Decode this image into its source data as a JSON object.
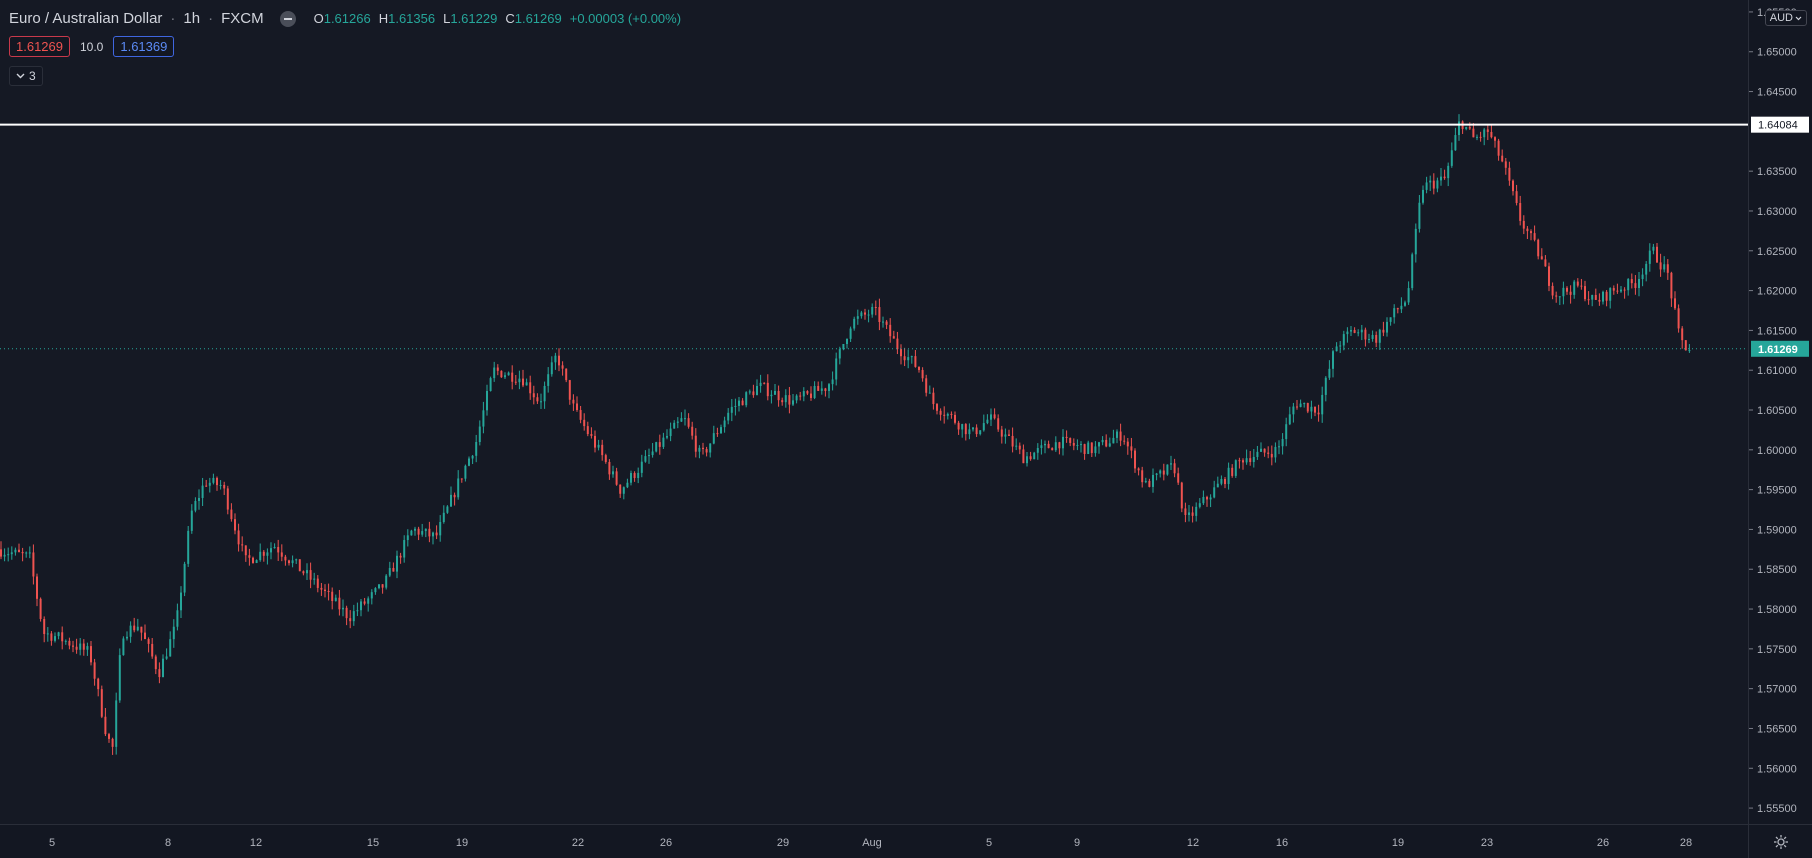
{
  "symbol": {
    "name": "Euro / Australian Dollar",
    "interval": "1h",
    "exchange": "FXCM"
  },
  "ohlc": {
    "o_label": "O",
    "o": "1.61266",
    "h_label": "H",
    "h": "1.61356",
    "l_label": "L",
    "l": "1.61229",
    "c_label": "C",
    "c": "1.61269",
    "change": "+0.00003 (+0.00%)"
  },
  "trade": {
    "sell_price": "1.61269",
    "quantity": "10.0",
    "buy_price": "1.61369"
  },
  "indicators_collapsed_count": "3",
  "currency": "AUD",
  "price_labels": [
    "1.65500",
    "1.65000",
    "1.64500",
    "1.63500",
    "1.63000",
    "1.62500",
    "1.62000",
    "1.61500",
    "1.61000",
    "1.60500",
    "1.60000",
    "1.59500",
    "1.59000",
    "1.58500",
    "1.58000",
    "1.57500",
    "1.57000",
    "1.56500",
    "1.56000",
    "1.55500"
  ],
  "hline": {
    "price": 1.64084,
    "label": "1.64084"
  },
  "last_price": {
    "price": 1.61269,
    "label": "1.61269"
  },
  "time_labels": [
    "5",
    "8",
    "12",
    "15",
    "19",
    "22",
    "26",
    "29",
    "Aug",
    "5",
    "9",
    "12",
    "16",
    "19",
    "23",
    "26",
    "28"
  ],
  "colors": {
    "up": "#26a69a",
    "down": "#ef5350",
    "background": "#151924",
    "hline": "#ffffff",
    "last_price": "#26a69a"
  },
  "chart_data": {
    "type": "candlestick",
    "ylim": [
      1.553,
      1.6565
    ],
    "keypoints": [
      [
        0,
        1.5875
      ],
      [
        28,
        1.5865
      ],
      [
        40,
        1.577
      ],
      [
        52,
        1.5765
      ],
      [
        80,
        1.5745
      ],
      [
        95,
        1.564
      ],
      [
        100,
        1.5625
      ],
      [
        108,
        1.577
      ],
      [
        122,
        1.578
      ],
      [
        140,
        1.572
      ],
      [
        155,
        1.578
      ],
      [
        168,
        1.592
      ],
      [
        180,
        1.596
      ],
      [
        195,
        1.5955
      ],
      [
        215,
        1.586
      ],
      [
        240,
        1.588
      ],
      [
        270,
        1.584
      ],
      [
        305,
        1.579
      ],
      [
        335,
        1.583
      ],
      [
        360,
        1.59
      ],
      [
        380,
        1.589
      ],
      [
        400,
        1.596
      ],
      [
        415,
        1.601
      ],
      [
        430,
        1.61
      ],
      [
        455,
        1.609
      ],
      [
        470,
        1.606
      ],
      [
        485,
        1.612
      ],
      [
        500,
        1.605
      ],
      [
        525,
        1.599
      ],
      [
        540,
        1.595
      ],
      [
        570,
        1.6
      ],
      [
        595,
        1.604
      ],
      [
        610,
        1.599
      ],
      [
        635,
        1.605
      ],
      [
        660,
        1.608
      ],
      [
        690,
        1.606
      ],
      [
        720,
        1.608
      ],
      [
        740,
        1.616
      ],
      [
        760,
        1.6175
      ],
      [
        780,
        1.613
      ],
      [
        800,
        1.61
      ],
      [
        810,
        1.606
      ],
      [
        845,
        1.602
      ],
      [
        860,
        1.604
      ],
      [
        890,
        1.599
      ],
      [
        920,
        1.601
      ],
      [
        950,
        1.6
      ],
      [
        975,
        1.602
      ],
      [
        995,
        1.5955
      ],
      [
        1020,
        1.598
      ],
      [
        1030,
        1.591
      ],
      [
        1055,
        1.595
      ],
      [
        1080,
        1.599
      ],
      [
        1110,
        1.6
      ],
      [
        1125,
        1.606
      ],
      [
        1145,
        1.605
      ],
      [
        1160,
        1.613
      ],
      [
        1175,
        1.615
      ],
      [
        1195,
        1.614
      ],
      [
        1210,
        1.617
      ],
      [
        1222,
        1.619
      ],
      [
        1235,
        1.633
      ],
      [
        1255,
        1.634
      ],
      [
        1268,
        1.6415
      ],
      [
        1280,
        1.639
      ],
      [
        1292,
        1.64
      ],
      [
        1305,
        1.636
      ],
      [
        1320,
        1.629
      ],
      [
        1335,
        1.625
      ],
      [
        1350,
        1.6195
      ],
      [
        1370,
        1.6205
      ],
      [
        1385,
        1.6185
      ],
      [
        1400,
        1.62
      ],
      [
        1420,
        1.621
      ],
      [
        1435,
        1.625
      ],
      [
        1448,
        1.622
      ],
      [
        1458,
        1.614
      ],
      [
        1465,
        1.6127
      ]
    ]
  }
}
